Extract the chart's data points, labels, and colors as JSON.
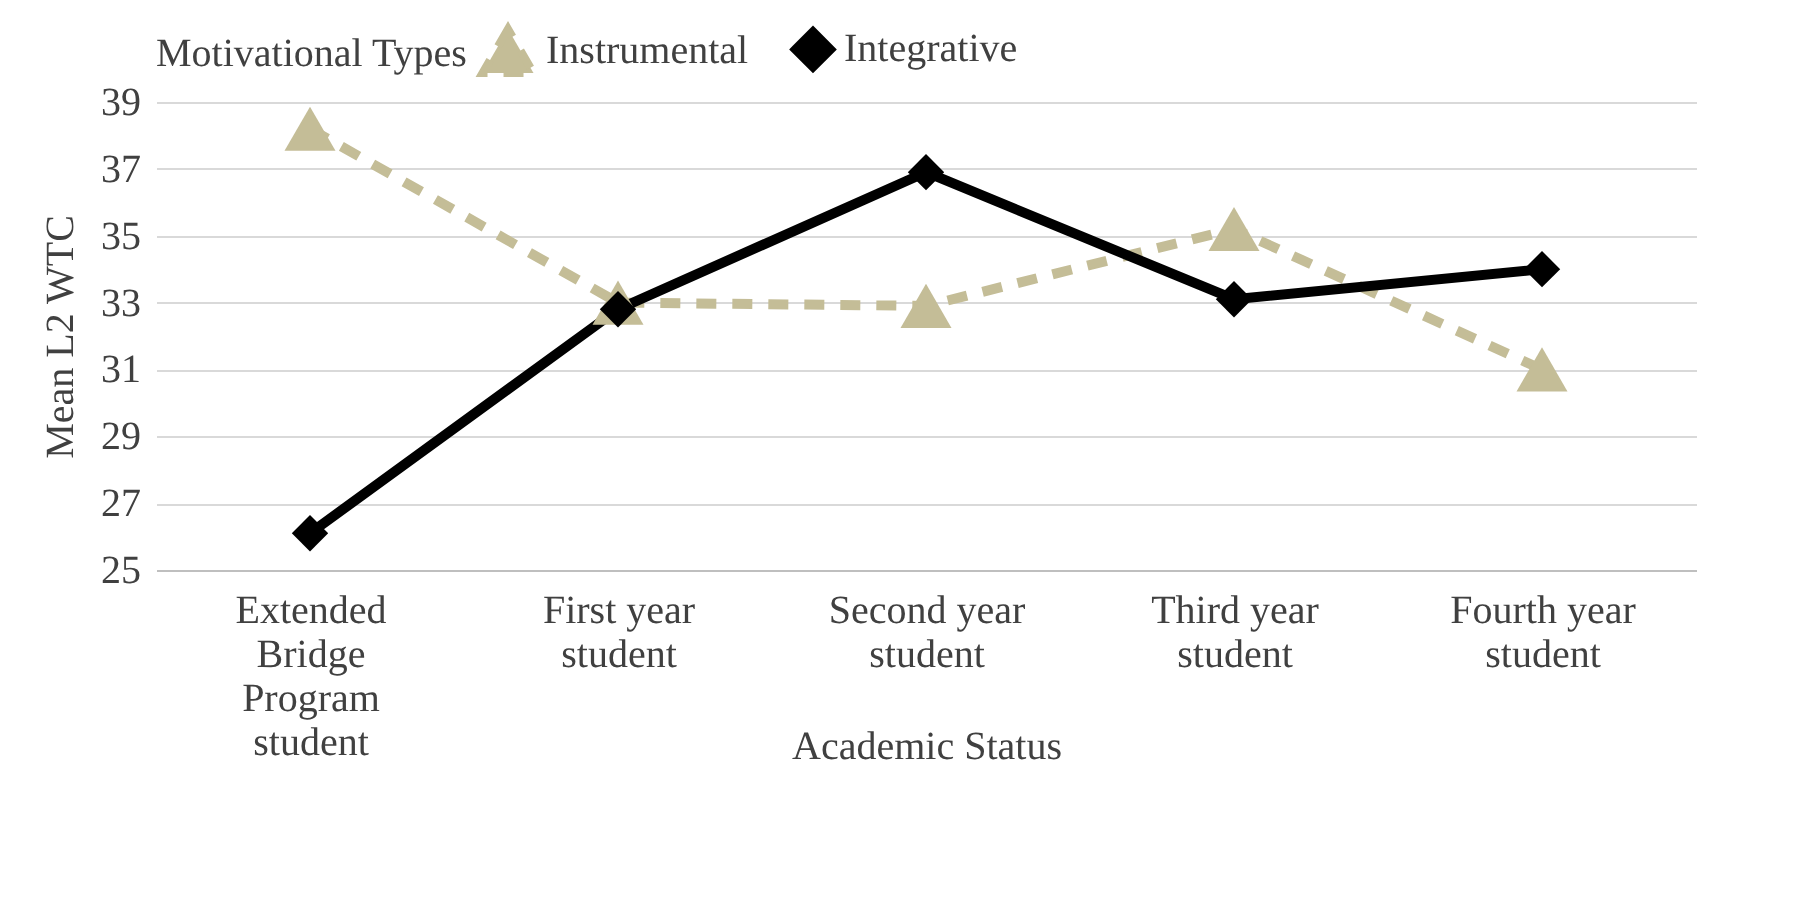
{
  "chart_data": {
    "type": "line",
    "xlabel": "Academic Status",
    "ylabel": "Mean L2 WTC",
    "legend_title": "Motivational Types",
    "legend": "top",
    "categories": [
      "Extended Bridge Program student",
      "First year student",
      "Second year student",
      "Third year student",
      "Fourth year student"
    ],
    "series": [
      {
        "name": "Instrumental",
        "color": "#c4bd97",
        "values": [
          38.2,
          33.0,
          32.9,
          35.2,
          31.0
        ],
        "line_style": "dashed",
        "marker": "triangle"
      },
      {
        "name": "Integrative",
        "color": "#000000",
        "values": [
          26.1,
          32.8,
          36.9,
          33.1,
          34.0
        ],
        "line_style": "solid",
        "marker": "diamond"
      }
    ],
    "ylim": [
      25,
      39
    ],
    "yticks": [
      25,
      27,
      29,
      31,
      33,
      35,
      37,
      39
    ],
    "grid": "y"
  }
}
